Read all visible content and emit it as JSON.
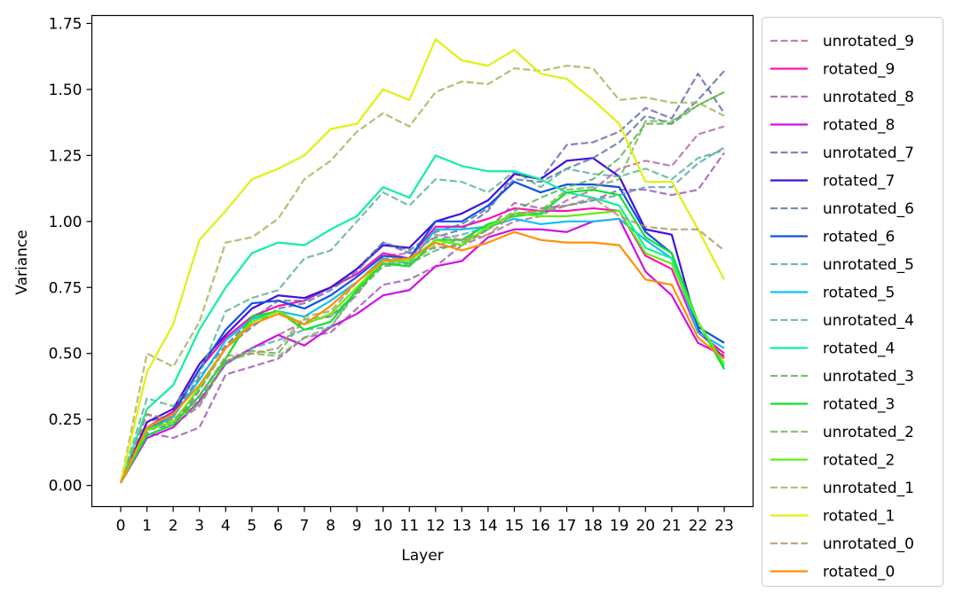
{
  "chart_data": {
    "type": "line",
    "title": "",
    "xlabel": "Layer",
    "ylabel": "Variance",
    "x": [
      0,
      1,
      2,
      3,
      4,
      5,
      6,
      7,
      8,
      9,
      10,
      11,
      12,
      13,
      14,
      15,
      16,
      17,
      18,
      19,
      20,
      21,
      22,
      23
    ],
    "xticks": [
      "0",
      "1",
      "2",
      "3",
      "4",
      "5",
      "6",
      "7",
      "8",
      "9",
      "10",
      "11",
      "12",
      "13",
      "14",
      "15",
      "16",
      "17",
      "18",
      "19",
      "20",
      "21",
      "22",
      "23"
    ],
    "yticks": [
      "0.00",
      "0.25",
      "0.50",
      "0.75",
      "1.00",
      "1.25",
      "1.50",
      "1.75"
    ],
    "ylim": [
      -0.08,
      1.78
    ],
    "grid": false,
    "legend_position": "outside-right",
    "series": [
      {
        "name": "unrotated_9",
        "color": "#b060a0",
        "style": "dashed",
        "values": [
          0.01,
          0.27,
          0.23,
          0.3,
          0.47,
          0.52,
          0.57,
          0.62,
          0.64,
          0.72,
          0.87,
          0.88,
          0.9,
          0.91,
          0.95,
          1.0,
          1.02,
          1.08,
          1.12,
          1.2,
          1.23,
          1.21,
          1.33,
          1.36
        ]
      },
      {
        "name": "rotated_9",
        "color": "#ff10b0",
        "style": "solid",
        "values": [
          0.01,
          0.22,
          0.28,
          0.44,
          0.56,
          0.64,
          0.68,
          0.7,
          0.75,
          0.8,
          0.88,
          0.86,
          0.98,
          0.98,
          1.01,
          1.05,
          1.04,
          1.04,
          1.05,
          1.04,
          0.87,
          0.82,
          0.58,
          0.5
        ]
      },
      {
        "name": "unrotated_8",
        "color": "#a050b0",
        "style": "dashed",
        "values": [
          0.01,
          0.2,
          0.18,
          0.22,
          0.42,
          0.45,
          0.48,
          0.56,
          0.58,
          0.67,
          0.76,
          0.78,
          0.83,
          0.91,
          0.97,
          1.07,
          1.05,
          1.06,
          1.08,
          1.12,
          1.12,
          1.1,
          1.12,
          1.26
        ]
      },
      {
        "name": "rotated_8",
        "color": "#d010e8",
        "style": "solid",
        "values": [
          0.01,
          0.18,
          0.22,
          0.32,
          0.46,
          0.52,
          0.57,
          0.53,
          0.6,
          0.65,
          0.72,
          0.74,
          0.83,
          0.85,
          0.94,
          0.97,
          0.97,
          0.96,
          1.0,
          1.01,
          0.81,
          0.72,
          0.54,
          0.49
        ]
      },
      {
        "name": "unrotated_7",
        "color": "#6060b0",
        "style": "dashed",
        "values": [
          0.01,
          0.24,
          0.27,
          0.41,
          0.53,
          0.63,
          0.7,
          0.7,
          0.75,
          0.82,
          0.92,
          0.88,
          0.94,
          0.97,
          1.04,
          1.18,
          1.16,
          1.29,
          1.3,
          1.34,
          1.43,
          1.39,
          1.56,
          1.41
        ]
      },
      {
        "name": "rotated_7",
        "color": "#4010e0",
        "style": "solid",
        "values": [
          0.01,
          0.24,
          0.29,
          0.46,
          0.57,
          0.67,
          0.72,
          0.71,
          0.75,
          0.82,
          0.91,
          0.9,
          1.0,
          1.03,
          1.08,
          1.18,
          1.16,
          1.23,
          1.24,
          1.17,
          0.97,
          0.95,
          0.59,
          0.48
        ]
      },
      {
        "name": "unrotated_6",
        "color": "#5070a8",
        "style": "dashed",
        "values": [
          0.01,
          0.21,
          0.23,
          0.36,
          0.52,
          0.6,
          0.67,
          0.69,
          0.74,
          0.81,
          0.92,
          0.89,
          0.96,
          0.99,
          1.05,
          1.16,
          1.15,
          1.2,
          1.24,
          1.3,
          1.4,
          1.37,
          1.46,
          1.57
        ]
      },
      {
        "name": "rotated_6",
        "color": "#1050e8",
        "style": "solid",
        "values": [
          0.01,
          0.21,
          0.27,
          0.44,
          0.59,
          0.69,
          0.7,
          0.67,
          0.72,
          0.79,
          0.87,
          0.86,
          1.0,
          1.0,
          1.06,
          1.15,
          1.11,
          1.14,
          1.14,
          1.13,
          0.96,
          0.88,
          0.6,
          0.54
        ]
      },
      {
        "name": "unrotated_5",
        "color": "#50a0b8",
        "style": "dashed",
        "values": [
          0.01,
          0.22,
          0.24,
          0.33,
          0.46,
          0.52,
          0.55,
          0.59,
          0.6,
          0.74,
          0.84,
          0.85,
          0.93,
          0.95,
          0.98,
          1.03,
          1.03,
          1.06,
          1.08,
          1.1,
          1.13,
          1.13,
          1.22,
          1.28
        ]
      },
      {
        "name": "rotated_5",
        "color": "#10c0f0",
        "style": "solid",
        "values": [
          0.01,
          0.21,
          0.26,
          0.4,
          0.55,
          0.63,
          0.66,
          0.64,
          0.7,
          0.77,
          0.86,
          0.84,
          0.97,
          0.97,
          0.98,
          1.01,
          0.99,
          1.0,
          1.0,
          1.01,
          0.93,
          0.86,
          0.58,
          0.52
        ]
      },
      {
        "name": "unrotated_4",
        "color": "#50b090",
        "style": "dashed",
        "values": [
          0.01,
          0.33,
          0.3,
          0.42,
          0.66,
          0.71,
          0.74,
          0.86,
          0.89,
          1.0,
          1.11,
          1.06,
          1.16,
          1.15,
          1.11,
          1.19,
          1.13,
          1.2,
          1.18,
          1.17,
          1.2,
          1.16,
          1.24,
          1.27
        ]
      },
      {
        "name": "rotated_4",
        "color": "#10f0a0",
        "style": "solid",
        "values": [
          0.01,
          0.29,
          0.38,
          0.59,
          0.75,
          0.88,
          0.92,
          0.91,
          0.97,
          1.02,
          1.13,
          1.09,
          1.25,
          1.21,
          1.19,
          1.19,
          1.16,
          1.11,
          1.09,
          1.06,
          0.9,
          0.86,
          0.62,
          0.45
        ]
      },
      {
        "name": "unrotated_3",
        "color": "#50b050",
        "style": "dashed",
        "values": [
          0.01,
          0.22,
          0.25,
          0.31,
          0.47,
          0.51,
          0.5,
          0.63,
          0.64,
          0.73,
          0.83,
          0.84,
          0.89,
          0.92,
          0.97,
          1.04,
          1.09,
          1.13,
          1.16,
          1.24,
          1.37,
          1.37,
          1.44,
          1.49
        ]
      },
      {
        "name": "rotated_3",
        "color": "#10e030",
        "style": "solid",
        "values": [
          0.01,
          0.19,
          0.23,
          0.34,
          0.48,
          0.64,
          0.66,
          0.59,
          0.62,
          0.74,
          0.84,
          0.83,
          0.93,
          0.93,
          0.99,
          1.02,
          1.03,
          1.11,
          1.12,
          1.1,
          0.94,
          0.88,
          0.62,
          0.44
        ]
      },
      {
        "name": "unrotated_2",
        "color": "#70b050",
        "style": "dashed",
        "values": [
          0.01,
          0.22,
          0.23,
          0.31,
          0.47,
          0.5,
          0.49,
          0.56,
          0.6,
          0.73,
          0.84,
          0.84,
          0.91,
          0.93,
          0.97,
          1.03,
          1.04,
          1.12,
          1.13,
          1.16,
          1.38,
          1.38,
          1.44,
          1.49
        ]
      },
      {
        "name": "rotated_2",
        "color": "#60f010",
        "style": "solid",
        "values": [
          0.01,
          0.21,
          0.24,
          0.37,
          0.52,
          0.62,
          0.66,
          0.61,
          0.65,
          0.75,
          0.85,
          0.85,
          0.93,
          0.91,
          0.98,
          1.03,
          1.02,
          1.02,
          1.03,
          1.04,
          0.88,
          0.84,
          0.62,
          0.46
        ]
      },
      {
        "name": "unrotated_1",
        "color": "#a0b050",
        "style": "dashed",
        "values": [
          0.01,
          0.5,
          0.45,
          0.62,
          0.92,
          0.94,
          1.01,
          1.16,
          1.23,
          1.34,
          1.41,
          1.36,
          1.49,
          1.53,
          1.52,
          1.58,
          1.57,
          1.59,
          1.58,
          1.46,
          1.47,
          1.45,
          1.45,
          1.4
        ]
      },
      {
        "name": "rotated_1",
        "color": "#e0f010",
        "style": "solid",
        "values": [
          0.01,
          0.43,
          0.61,
          0.93,
          1.04,
          1.16,
          1.2,
          1.25,
          1.35,
          1.37,
          1.5,
          1.46,
          1.69,
          1.61,
          1.59,
          1.65,
          1.56,
          1.54,
          1.46,
          1.37,
          1.15,
          1.15,
          0.97,
          0.78
        ]
      },
      {
        "name": "unrotated_0",
        "color": "#b09060",
        "style": "dashed",
        "values": [
          0.01,
          0.27,
          0.25,
          0.34,
          0.49,
          0.5,
          0.52,
          0.64,
          0.66,
          0.77,
          0.86,
          0.86,
          0.95,
          0.93,
          0.95,
          1.03,
          1.04,
          1.06,
          1.09,
          1.02,
          0.98,
          0.97,
          0.97,
          0.89
        ]
      },
      {
        "name": "rotated_0",
        "color": "#ff9000",
        "style": "solid",
        "values": [
          0.01,
          0.22,
          0.27,
          0.38,
          0.52,
          0.61,
          0.65,
          0.61,
          0.68,
          0.77,
          0.85,
          0.86,
          0.92,
          0.89,
          0.92,
          0.96,
          0.93,
          0.92,
          0.92,
          0.91,
          0.78,
          0.76,
          0.56,
          0.48
        ]
      }
    ]
  }
}
